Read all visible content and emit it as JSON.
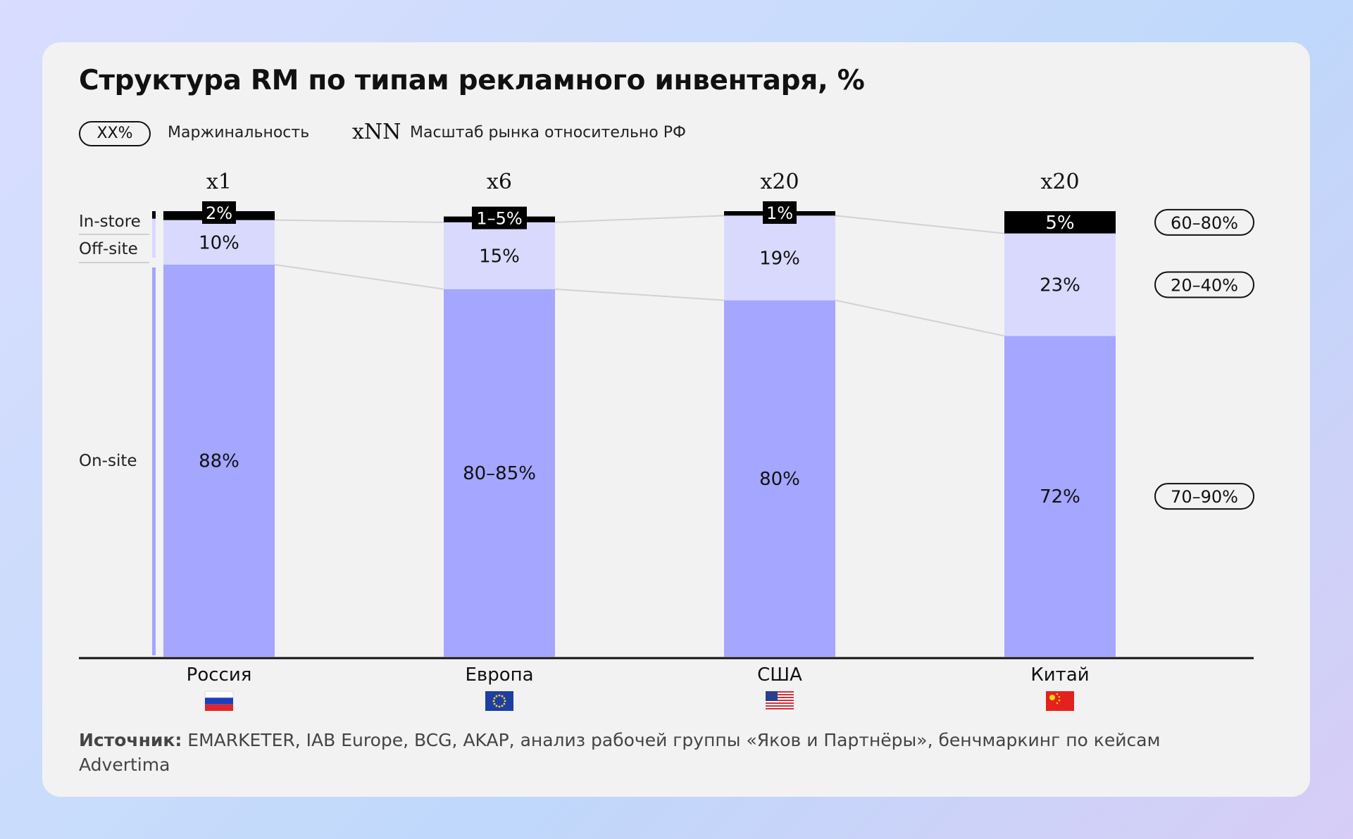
{
  "title": "Структура RM по типам рекламного инвентаря, %",
  "legend": {
    "margin_sample": "XX%",
    "margin_label": "Маржинальность",
    "scale_sample": "xNN",
    "scale_label": "Масштаб рынка относительно РФ"
  },
  "colors": {
    "on_site": "#a4a6ff",
    "off_site": "#d9d9fd",
    "in_store": "#000000",
    "background_card": "#f2f2f3"
  },
  "chart_data": {
    "type": "bar",
    "stacked": true,
    "orientation": "vertical",
    "categories": [
      "Россия",
      "Европа",
      "США",
      "Китай"
    ],
    "category_flags": [
      "flag-russia-icon",
      "flag-eu-icon",
      "flag-usa-icon",
      "flag-china-icon"
    ],
    "market_scale": [
      "x1",
      "x6",
      "x20",
      "x20"
    ],
    "series": [
      {
        "name": "On-site",
        "values": [
          88,
          82.5,
          80,
          72
        ],
        "labels": [
          "88%",
          "80–85%",
          "80%",
          "72%"
        ],
        "color": "#a4a6ff"
      },
      {
        "name": "Off-site",
        "values": [
          10,
          15,
          19,
          23
        ],
        "labels": [
          "10%",
          "15%",
          "19%",
          "23%"
        ],
        "color": "#d9d9fd"
      },
      {
        "name": "In-store",
        "values": [
          2,
          1.3,
          1,
          5
        ],
        "labels": [
          "2%",
          "1–5%",
          "1%",
          "5%"
        ],
        "color": "#000000"
      }
    ],
    "margins": [
      {
        "series": "In-store",
        "label": "60–80%"
      },
      {
        "series": "Off-site",
        "label": "20–40%"
      },
      {
        "series": "On-site",
        "label": "70–90%"
      }
    ],
    "ylim": [
      0,
      100
    ],
    "grid": false,
    "legend": "left"
  },
  "source": {
    "label": "Источник:",
    "text": " EMARKETER, IAB Europe, BCG, AKAP, анализ рабочей группы «Яков и Партнёры», бенчмаркинг по кейсам Advertima"
  }
}
